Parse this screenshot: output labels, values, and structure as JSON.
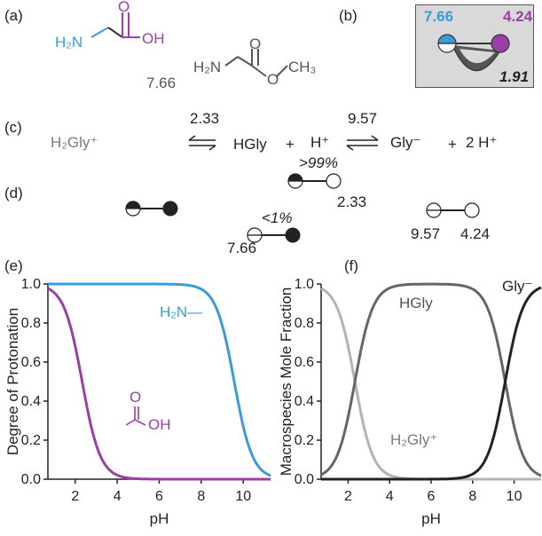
{
  "colors": {
    "amine": "#3b9bd6",
    "acid": "#9b3fa7",
    "dark": "#222222",
    "gray": "#7a7a7a",
    "panel_bg": "#d9d9d9"
  },
  "panels": {
    "a": "(a)",
    "b": "(b)",
    "c": "(c)",
    "d": "(d)",
    "e": "(e)",
    "f": "(f)"
  },
  "panel_a": {
    "glycine_amine": "H₂N",
    "glycine_acid": "OH",
    "ester_pka": "7.66",
    "ester_amine": "H₂N",
    "ester_methyl": "CH₃",
    "ester_o": "O"
  },
  "panel_b": {
    "amine_pka": "7.66",
    "acid_pka": "4.24",
    "coop": "1.91"
  },
  "panel_c": {
    "s1": "H₂Gly⁺",
    "k1": "2.33",
    "s2": "HGly",
    "plus1": "+",
    "s3": "H⁺",
    "k2": "9.57",
    "s4": "Gly⁻",
    "plus2": "+",
    "s5": "2 H⁺"
  },
  "panel_d": {
    "gt99": ">99%",
    "lt1": "<1%",
    "val_233": "2.33",
    "val_766": "7.66",
    "val_957": "9.57",
    "val_424": "4.24"
  },
  "chart_data": [
    {
      "type": "line",
      "ylabel": "Degree of Protonation",
      "xlabel": "pH",
      "xlim": [
        0.7,
        11.3
      ],
      "ylim": [
        0.0,
        1.0
      ],
      "xticks": [
        "2",
        "4",
        "6",
        "8",
        "10"
      ],
      "yticks": [
        "0.0",
        "0.2",
        "0.4",
        "0.6",
        "0.8",
        "1.0"
      ],
      "annotations": [
        "H₂N—",
        "OH"
      ],
      "series": [
        {
          "color": "#3b9bd6",
          "pKa": 9.57
        },
        {
          "color": "#9b3fa7",
          "pKa": 2.33
        }
      ]
    },
    {
      "type": "line",
      "ylabel": "Macrospecies Mole Fraction",
      "xlabel": "pH",
      "xlim": [
        0.7,
        11.3
      ],
      "ylim": [
        0.0,
        1.0
      ],
      "xticks": [
        "2",
        "4",
        "6",
        "8",
        "10"
      ],
      "yticks": [
        "0.0",
        "0.2",
        "0.4",
        "0.6",
        "0.8",
        "1.0"
      ],
      "series": [
        {
          "name": "H₂Gly⁺",
          "color": "#b3b3b3",
          "pKa": [
            2.33,
            9.57
          ]
        },
        {
          "name": "HGly",
          "color": "#666666",
          "pKa": [
            2.33,
            9.57
          ]
        },
        {
          "name": "Gly⁻",
          "color": "#222222",
          "pKa": [
            2.33,
            9.57
          ]
        }
      ]
    }
  ]
}
